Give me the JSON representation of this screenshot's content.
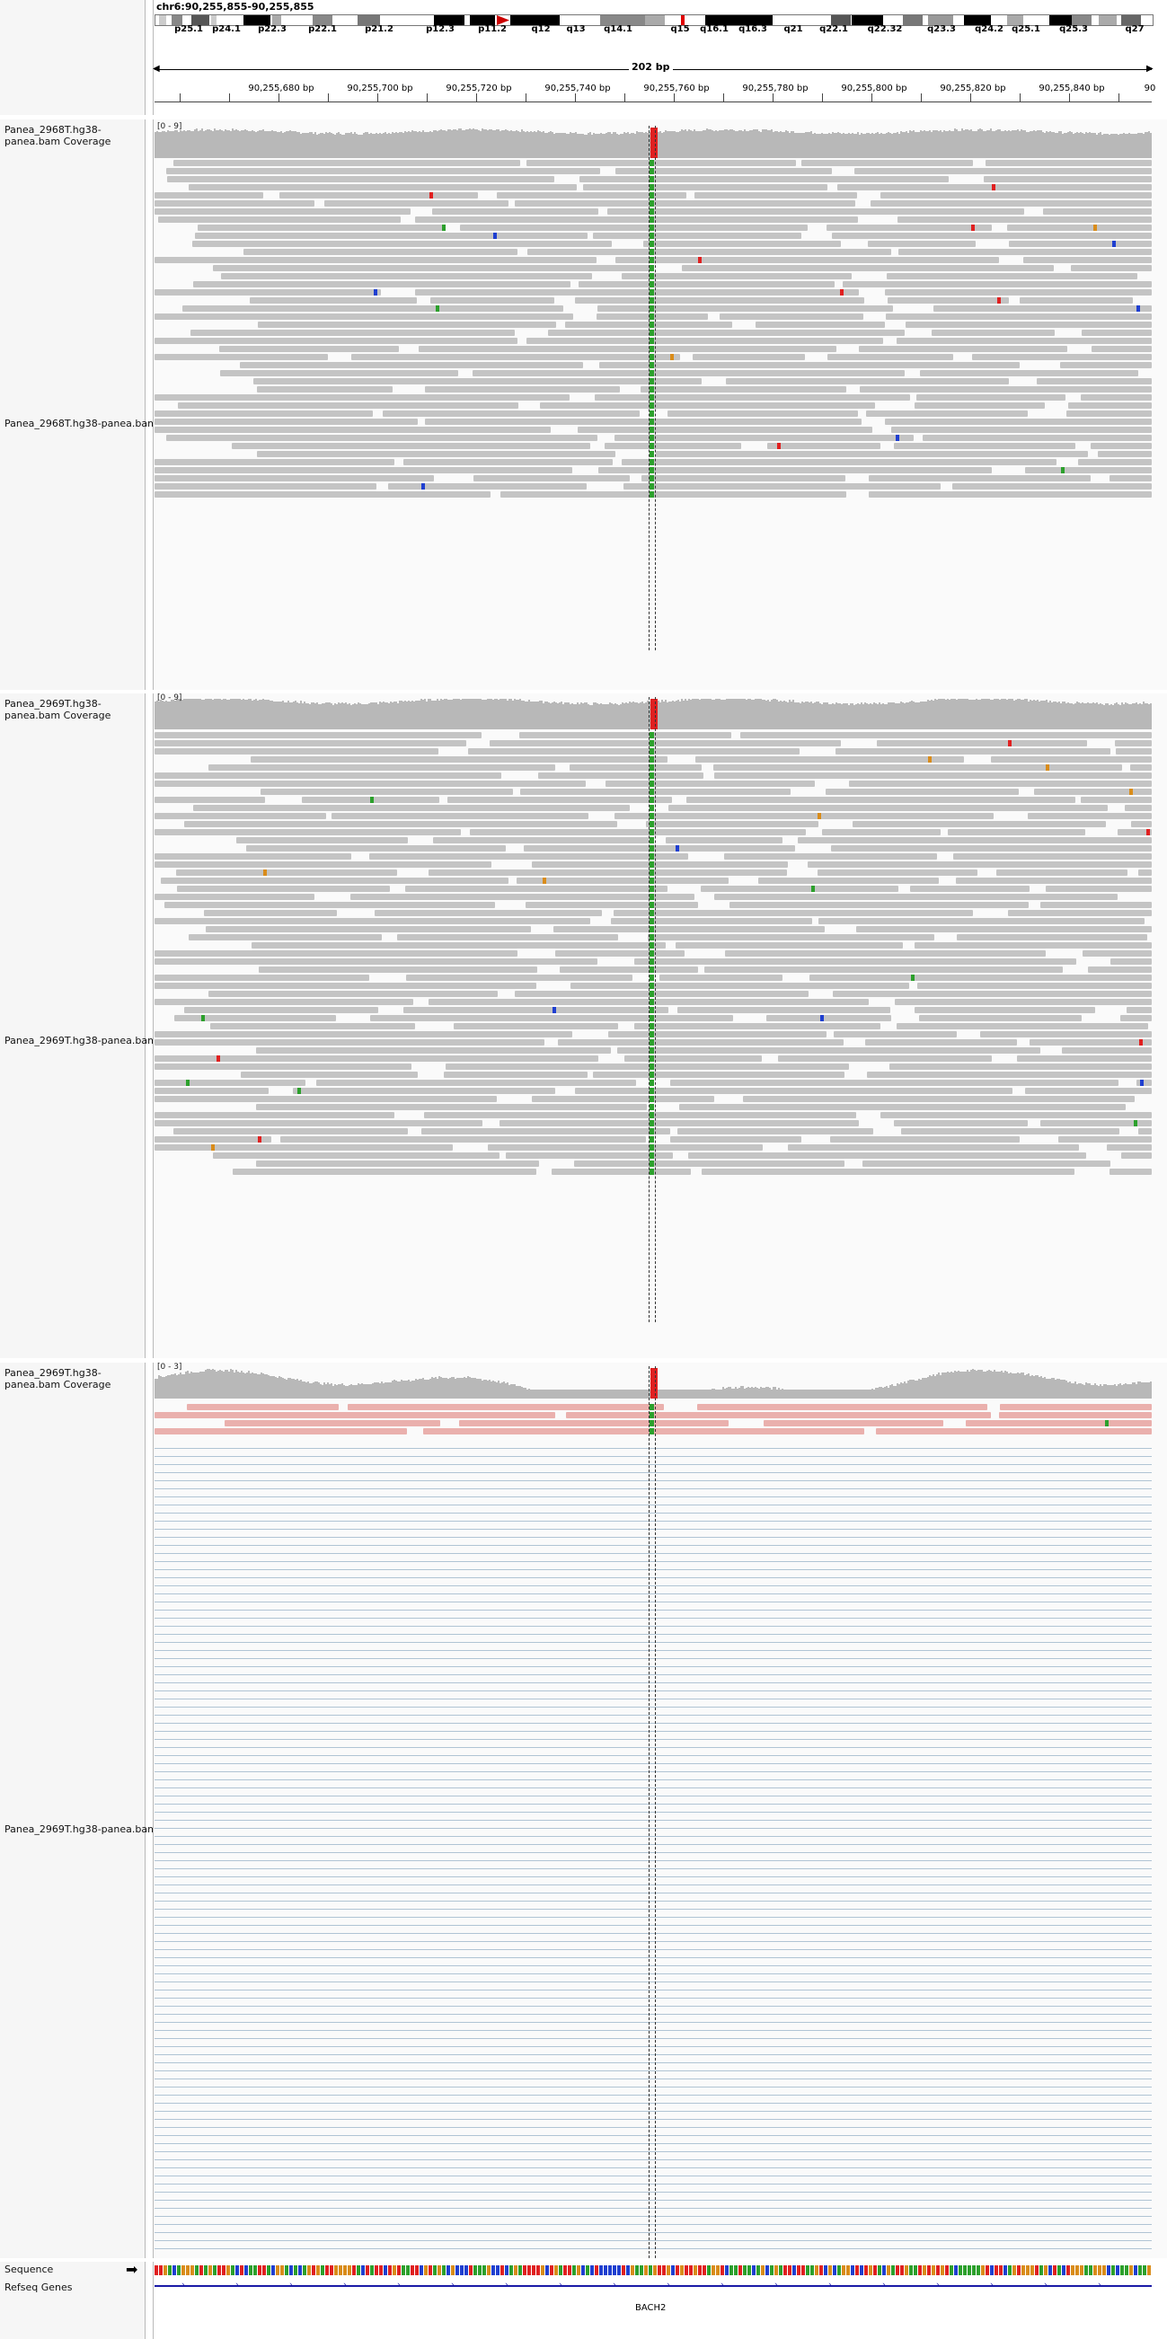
{
  "header": {
    "locus": "chr6:90,255,855-90,255,855",
    "span_label": "202 bp",
    "cytobands": [
      "p25.1",
      "p24.1",
      "p22.3",
      "p22.1",
      "p21.2",
      "p12.3",
      "p11.2",
      "q12",
      "q13",
      "q14.1",
      "q15",
      "q16.1",
      "q16.3",
      "q21",
      "q22.1",
      "q22.32",
      "q23.3",
      "q24.2",
      "q25.1",
      "q25.3",
      "q27"
    ],
    "ruler_ticks": [
      "90,255,680 bp",
      "90,255,700 bp",
      "90,255,720 bp",
      "90,255,740 bp",
      "90,255,760 bp",
      "90,255,780 bp",
      "90,255,800 bp",
      "90,255,820 bp",
      "90,255,840 bp",
      "90"
    ]
  },
  "tracks": [
    {
      "coverage_label": "Panea_2968T.hg38-panea.bam Coverage",
      "alignment_label": "Panea_2968T.hg38-panea.bam",
      "scale": "[0 - 9]"
    },
    {
      "coverage_label": "Panea_2969T.hg38-panea.bam Coverage",
      "alignment_label": "Panea_2969T.hg38-panea.bam",
      "scale": "[0 - 9]"
    },
    {
      "coverage_label": "Panea_2969T.hg38-panea.bam Coverage",
      "alignment_label": "Panea_2969T.hg38-panea.bam",
      "scale": "[0 - 3]"
    }
  ],
  "bottom": {
    "sequence_label": "Sequence",
    "refseq_label": "Refseq Genes",
    "gene_name": "BACH2"
  },
  "colors": {
    "read_gray": "#c4c4c4",
    "read_pink": "#eab0ad",
    "base_A": "#2ca02c",
    "base_C": "#1f3fd0",
    "base_G": "#d98c1a",
    "base_T": "#e02020",
    "gene_blue": "#1a1aa6"
  }
}
